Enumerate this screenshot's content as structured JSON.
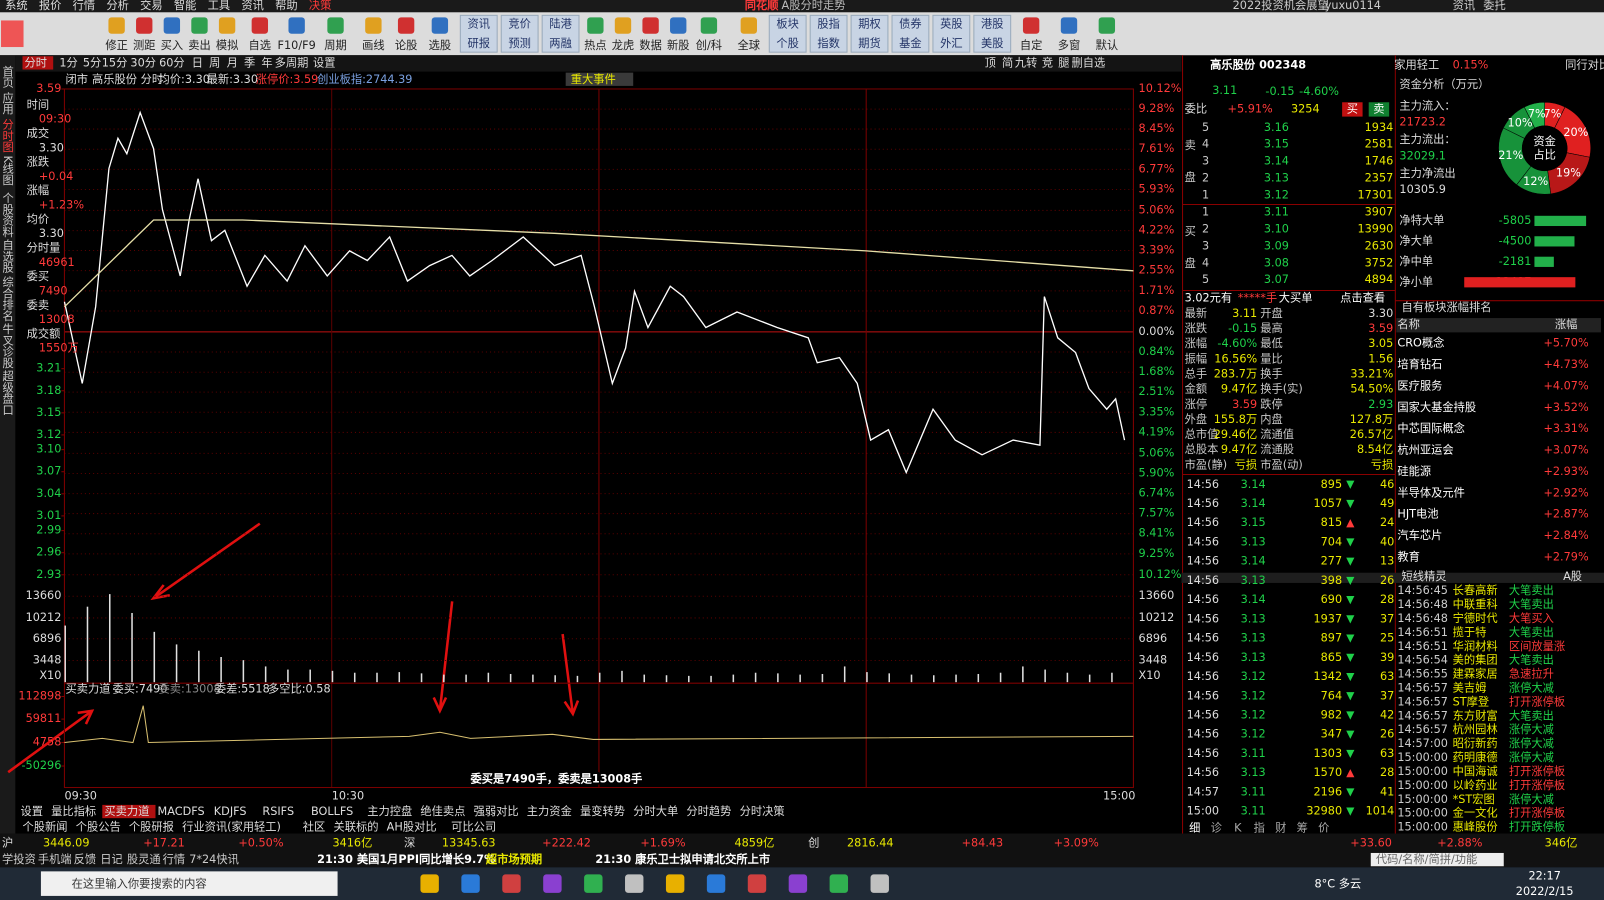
{
  "menu": [
    "系统",
    "报价",
    "行情",
    "分析",
    "交易",
    "智能",
    "工具",
    "资讯",
    "帮助",
    "决策"
  ],
  "window": {
    "app": "同花顺",
    "title": "A股分时走势",
    "extra": [
      "2022投资机会展望",
      "yuxu0114",
      "资讯",
      "委托"
    ]
  },
  "toolbar": {
    "buttons": [
      "修正",
      "测距",
      "买入",
      "卖出",
      "模拟",
      "自选",
      "F10/F9",
      "周期",
      "画线",
      "论股",
      "选股",
      "热点",
      "龙虎",
      "数据",
      "新股",
      "创/科",
      "全球",
      "自定",
      "多窗",
      "默认"
    ],
    "pairs": [
      [
        "资讯",
        "研报"
      ],
      [
        "竞价",
        "预测"
      ],
      [
        "陆港",
        "两融"
      ],
      [
        "板块",
        "个股"
      ],
      [
        "股指",
        "指数"
      ],
      [
        "期权",
        "期货"
      ],
      [
        "债券",
        "基金"
      ],
      [
        "英股",
        "外汇"
      ],
      [
        "港股",
        "美股"
      ]
    ]
  },
  "side_tabs": [
    "首页",
    "应用",
    "分时图",
    "K线图",
    "个股资料",
    "自选股",
    "综合排名",
    "牛叉诊股",
    "超级盘口"
  ],
  "chart_data": {
    "type": "line",
    "tabs": [
      "分时",
      "1分",
      "5分",
      "15分",
      "30分",
      "60分",
      "日",
      "周",
      "月",
      "季",
      "年",
      "多周期",
      "设置"
    ],
    "tabs_right": [
      "顶",
      "简",
      "九转",
      "竞",
      "腿",
      "删自选"
    ],
    "status": "闭市",
    "info": [
      "高乐股份 分时",
      "均价:3.30",
      "最新:3.30",
      "涨停价:3.59",
      "创业板指:2744.39"
    ],
    "event_tab": "重大事件",
    "x": [
      0,
      4,
      7,
      10,
      12,
      14,
      17,
      20,
      22,
      26,
      28,
      30,
      33,
      36,
      41,
      45,
      50,
      54,
      59,
      64,
      68,
      73,
      77,
      82,
      87,
      91,
      96,
      103,
      110,
      116,
      119,
      123,
      126,
      128,
      131,
      136,
      139,
      144,
      151,
      160,
      167,
      169,
      174,
      178,
      181,
      185,
      189,
      195,
      200,
      206,
      213,
      219,
      220,
      223,
      227,
      230,
      234,
      236,
      238
    ],
    "series": [
      {
        "name": "分时",
        "color": "#ffffff",
        "axis": "y2",
        "values": [
          3.301,
          3.19,
          3.294,
          3.482,
          3.523,
          3.502,
          3.558,
          3.509,
          3.426,
          3.336,
          3.412,
          3.468,
          3.384,
          3.398,
          3.322,
          3.364,
          3.329,
          3.377,
          3.336,
          3.37,
          3.357,
          3.389,
          3.329,
          3.35,
          3.364,
          3.336,
          3.357,
          3.389,
          3.35,
          3.364,
          3.294,
          3.19,
          3.238,
          3.315,
          3.266,
          3.322,
          3.308,
          3.266,
          3.287,
          3.266,
          3.252,
          3.218,
          3.225,
          3.19,
          3.113,
          3.127,
          3.069,
          3.155,
          3.113,
          3.093,
          3.113,
          3.106,
          3.308,
          3.252,
          3.232,
          3.183,
          3.155,
          3.169,
          3.113
        ]
      },
      {
        "name": "均价",
        "color": "#e6dfa8",
        "axis": "y2",
        "x": [
          0,
          20,
          40,
          110,
          180,
          240
        ],
        "values": [
          3.294,
          3.412,
          3.412,
          3.394,
          3.37,
          3.343
        ]
      }
    ],
    "xlim": [
      0,
      240
    ],
    "xticks": [
      {
        "value": 0,
        "label": "09:30"
      },
      {
        "value": 60,
        "label": "10:30"
      },
      {
        "value": 240,
        "label": "15:00"
      }
    ],
    "ylim": [
      -10.12,
      10.12
    ],
    "yticks": [
      {
        "value": 10.12,
        "label": "10.12%"
      },
      {
        "value": 9.28,
        "label": "9.28%"
      },
      {
        "value": 8.45,
        "label": "8.45%"
      },
      {
        "value": 7.61,
        "label": "7.61%"
      },
      {
        "value": 6.77,
        "label": "6.77%"
      },
      {
        "value": 5.93,
        "label": "5.93%"
      },
      {
        "value": 5.06,
        "label": "5.06%"
      },
      {
        "value": 4.22,
        "label": "4.22%"
      },
      {
        "value": 3.39,
        "label": "3.39%"
      },
      {
        "value": 2.55,
        "label": "2.55%"
      },
      {
        "value": 1.71,
        "label": "1.71%"
      },
      {
        "value": 0.87,
        "label": "0.87%"
      },
      {
        "value": 0,
        "label": "0.00%"
      },
      {
        "value": -0.84,
        "label": "0.84%"
      },
      {
        "value": -1.68,
        "label": "1.68%"
      },
      {
        "value": -2.51,
        "label": "2.51%"
      },
      {
        "value": -3.35,
        "label": "3.35%"
      },
      {
        "value": -4.19,
        "label": "4.19%"
      },
      {
        "value": -5.06,
        "label": "5.06%"
      },
      {
        "value": -5.9,
        "label": "5.90%"
      },
      {
        "value": -6.74,
        "label": "6.74%"
      },
      {
        "value": -7.57,
        "label": "7.57%"
      },
      {
        "value": -8.41,
        "label": "8.41%"
      },
      {
        "value": -9.25,
        "label": "9.25%"
      },
      {
        "value": -10.12,
        "label": "10.12%"
      }
    ],
    "y2lim": [
      2.93,
      3.59
    ],
    "y2ticks": [
      3.59,
      3.21,
      3.18,
      3.15,
      3.12,
      {
        "value": 3.1,
        "label": "3.10"
      },
      3.07,
      3.04,
      3.01,
      2.99,
      2.96,
      2.93
    ],
    "grid": true,
    "volume": {
      "x": [
        0,
        5,
        10,
        15,
        20,
        25,
        30,
        35,
        40,
        45,
        50,
        55,
        60,
        65,
        70,
        75,
        80,
        85,
        90,
        95,
        100,
        105,
        110,
        115,
        120,
        125,
        130,
        135,
        140,
        145,
        150,
        155,
        160,
        165,
        170,
        175,
        180,
        185,
        190,
        195,
        200,
        205,
        210,
        215,
        220,
        225,
        230,
        235
      ],
      "values": [
        9000,
        12000,
        14000,
        11000,
        8000,
        6000,
        5000,
        4000,
        3500,
        2500,
        2000,
        2000,
        1800,
        1500,
        1500,
        1600,
        1400,
        1200,
        1200,
        1500,
        1300,
        1200,
        1100,
        1000,
        1500,
        1800,
        1200,
        1100,
        1000,
        1000,
        1200,
        1500,
        1400,
        1200,
        1300,
        2500,
        1600,
        1400,
        1200,
        1100,
        1200,
        1300,
        1500,
        2500,
        2000,
        1500,
        1200,
        1500
      ],
      "color": "#e0e0e0",
      "ylim": [
        0,
        17075
      ],
      "yticks": [
        3448,
        6896,
        10212,
        13660
      ],
      "unit": "X10"
    },
    "indicator": {
      "title": "买卖力道",
      "info": [
        "委买:7490",
        "委卖:13008",
        "委差:5518",
        "多空比:0.58"
      ],
      "ylim": [
        -100700,
        144100
      ],
      "yticks": [
        112898,
        59811,
        4758,
        -50296
      ]
    },
    "left_info": [
      [
        "时间",
        "09:30"
      ],
      [
        "成交",
        "3.30"
      ],
      [
        "涨跌",
        "+0.04"
      ],
      [
        "涨幅",
        "+1.23%"
      ],
      [
        "均价",
        "3.30"
      ],
      [
        "分时量",
        "46961"
      ],
      [
        "委买",
        "7490"
      ],
      [
        "委卖",
        "13008"
      ],
      [
        "成交额",
        "1550万"
      ]
    ],
    "bottom_tabs": [
      "设置",
      "量比指标",
      "买卖力道",
      "MACDFS",
      "KDJFS",
      "RSIFS",
      "BOLLFS",
      "主力控盘",
      "绝佳卖点",
      "强弱对比",
      "主力资金",
      "量变转势",
      "分时大单",
      "分时趋势",
      "分时决策"
    ],
    "bottom_tabs2": [
      "个股新闻",
      "个股公告",
      "个股研报",
      "行业资讯(家用轻工)",
      "社区",
      "关联标的",
      "AH股对比",
      "可比公司"
    ]
  },
  "quote": {
    "name": "高乐股份 002348",
    "industry": "家用轻工",
    "industry_pct": "0.15%",
    "compare": "同行对比",
    "price": "3.11",
    "change": "-0.15",
    "pct": "-4.60%",
    "webi_label": "委比",
    "webi": "+5.91%",
    "weicha": "3254",
    "buy": "买",
    "sell": "卖",
    "sell_side": [
      "卖",
      "盘"
    ],
    "buy_side": [
      "买",
      "盘"
    ],
    "asks": [
      [
        "5",
        "3.16",
        "1934"
      ],
      [
        "4",
        "3.15",
        "2581"
      ],
      [
        "3",
        "3.14",
        "1746"
      ],
      [
        "2",
        "3.13",
        "2357"
      ],
      [
        "1",
        "3.12",
        "17301"
      ]
    ],
    "bids": [
      [
        "1",
        "3.11",
        "3907"
      ],
      [
        "2",
        "3.10",
        "13990"
      ],
      [
        "3",
        "3.09",
        "2630"
      ],
      [
        "4",
        "3.08",
        "3752"
      ],
      [
        "5",
        "3.07",
        "4894"
      ]
    ],
    "bigorder": [
      "3.02元有",
      "*****手",
      "大买单",
      "点击查看"
    ],
    "stats": [
      [
        "最新",
        "3.11",
        "开盘",
        "3.30"
      ],
      [
        "涨跌",
        "-0.15",
        "最高",
        "3.59"
      ],
      [
        "涨幅",
        "-4.60%",
        "最低",
        "3.05"
      ],
      [
        "振幅",
        "16.56%",
        "量比",
        "1.56"
      ],
      [
        "总手",
        "283.7万",
        "换手",
        "33.21%"
      ],
      [
        "金额",
        "9.47亿",
        "换手(实)",
        "54.50%"
      ],
      [
        "涨停",
        "3.59",
        "跌停",
        "2.93"
      ],
      [
        "外盘",
        "155.8万",
        "内盘",
        "127.8万"
      ],
      [
        "总市值",
        "29.46亿",
        "流通值",
        "26.57亿"
      ],
      [
        "总股本",
        "9.47亿",
        "流通股",
        "8.54亿"
      ],
      [
        "市盈(静)",
        "亏损",
        "市盈(动)",
        "亏损"
      ]
    ],
    "ticks": [
      [
        "14:56",
        "3.14",
        "895",
        "46"
      ],
      [
        "14:56",
        "3.14",
        "1057",
        "49"
      ],
      [
        "14:56",
        "3.15",
        "815",
        "24"
      ],
      [
        "14:56",
        "3.13",
        "704",
        "40"
      ],
      [
        "14:56",
        "3.14",
        "277",
        "13"
      ],
      [
        "14:56",
        "3.13",
        "398",
        "26"
      ],
      [
        "14:56",
        "3.14",
        "690",
        "28"
      ],
      [
        "14:56",
        "3.13",
        "1937",
        "37"
      ],
      [
        "14:56",
        "3.13",
        "897",
        "25"
      ],
      [
        "14:56",
        "3.13",
        "865",
        "39"
      ],
      [
        "14:56",
        "3.12",
        "1342",
        "63"
      ],
      [
        "14:56",
        "3.12",
        "764",
        "37"
      ],
      [
        "14:56",
        "3.12",
        "982",
        "42"
      ],
      [
        "14:56",
        "3.12",
        "347",
        "26"
      ],
      [
        "14:56",
        "3.11",
        "1303",
        "63"
      ],
      [
        "14:56",
        "3.13",
        "1570",
        "28"
      ],
      [
        "14:57",
        "3.11",
        "2196",
        "41"
      ],
      [
        "15:00",
        "3.11",
        "32980",
        "1014"
      ]
    ]
  },
  "fund": {
    "title": "资金分析（万元）",
    "rows": [
      [
        "主力流入：",
        "21723.2"
      ],
      [
        "主力流出：",
        "32029.1"
      ],
      [
        "主力净流出",
        "10305.9"
      ]
    ],
    "pie": {
      "type": "pie",
      "center": [
        "资金",
        "占比"
      ],
      "labels": [
        "7%",
        "20%",
        "19%",
        "12%",
        "21%",
        "10%",
        "7%"
      ],
      "values": [
        7,
        20,
        19,
        12,
        21,
        10,
        7
      ],
      "colors": [
        "#e02020",
        "#e02020",
        "#b81818",
        "#17923a",
        "#17923a",
        "#17923a",
        "#22b04a"
      ]
    },
    "net": {
      "labels": [
        "净特大单",
        "净大单",
        "净中单",
        "净小单"
      ],
      "values": [
        -5805,
        -4500,
        -2181,
        12487
      ]
    }
  },
  "sectors": {
    "title": "自有板块涨幅排名",
    "head": [
      "名称",
      "涨幅"
    ],
    "names": [
      "CRO概念",
      "培育钻石",
      "医疗服务",
      "国家大基金持股",
      "中芯国际概念",
      "杭州亚运会",
      "硅能源",
      "半导体及元件",
      "HJT电池",
      "汽车芯片",
      "教育"
    ],
    "pcts": [
      "+5.70%",
      "+4.73%",
      "+4.07%",
      "+3.52%",
      "+3.31%",
      "+3.07%",
      "+2.93%",
      "+2.92%",
      "+2.87%",
      "+2.84%",
      "+2.79%"
    ]
  },
  "alerts": {
    "title": "短线精灵",
    "market": "A股",
    "rows": [
      [
        "14:56:45",
        "长春高新",
        "大笔卖出"
      ],
      [
        "14:56:48",
        "中联重科",
        "大笔卖出"
      ],
      [
        "14:56:48",
        "宁德时代",
        "大笔买入"
      ],
      [
        "14:56:51",
        "揽于特",
        "大笔卖出"
      ],
      [
        "14:56:51",
        "华润材料",
        "区间放量涨"
      ],
      [
        "14:56:54",
        "美的集团",
        "大笔卖出"
      ],
      [
        "14:56:55",
        "建霖家居",
        "急速拉升"
      ],
      [
        "14:56:57",
        "美吉姆",
        "涨停大减"
      ],
      [
        "14:56:57",
        "ST摩登",
        "打开涨停板"
      ],
      [
        "14:56:57",
        "东方财富",
        "大笔卖出"
      ],
      [
        "14:56:57",
        "杭州园林",
        "涨停大减"
      ],
      [
        "14:57:00",
        "昭衍新药",
        "涨停大减"
      ],
      [
        "15:00:00",
        "药明康德",
        "涨停大减"
      ],
      [
        "15:00:00",
        "中国海诚",
        "打开涨停板"
      ],
      [
        "15:00:00",
        "以岭药业",
        "打开涨停板"
      ],
      [
        "15:00:00",
        "*ST宏图",
        "涨停大减"
      ],
      [
        "15:00:00",
        "金一文化",
        "打开涨停板"
      ],
      [
        "15:00:00",
        "惠峰股份",
        "打开跌停板"
      ]
    ]
  },
  "right_tabs": [
    "细",
    "诊",
    "K",
    "指",
    "财",
    "筹",
    "价"
  ],
  "statusbar": {
    "items": [
      "沪",
      "3446.09",
      "+17.21",
      "+0.50%",
      "3416亿",
      "深",
      "13345.63",
      "+222.42",
      "+1.69%",
      "4859亿",
      "创",
      "2816.44",
      "+84.43",
      "+3.09%",
      "+33.60",
      "+2.88%",
      "346亿"
    ],
    "links": [
      "学投资",
      "手机端",
      "反馈",
      "日记",
      "股灵通",
      "行情",
      "7*24快讯"
    ],
    "news": [
      "21:30 美国1月PPI同比增长9.7%",
      "超市场预期",
      "21:30 康乐卫士拟申请北交所上市"
    ],
    "search": "代码/名称/简拼/功能"
  },
  "caption": "委买是7490手，委卖是13008手",
  "taskbar": {
    "search": "在这里输入你要搜索的内容",
    "weather": "8°C 多云",
    "time": "22:17",
    "date": "2022/2/15"
  }
}
